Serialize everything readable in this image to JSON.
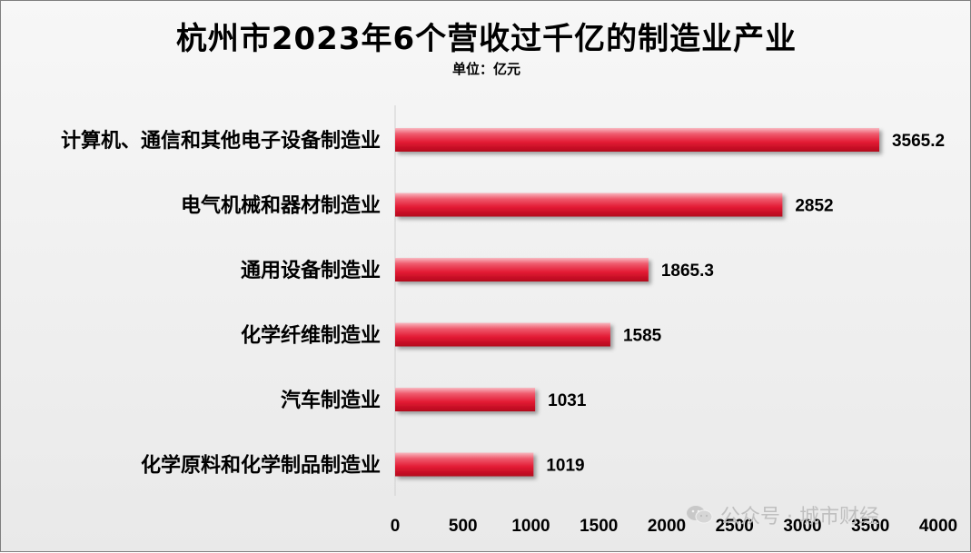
{
  "chart_data": {
    "type": "bar",
    "orientation": "horizontal",
    "title": "杭州市2023年6个营收过千亿的制造业产业",
    "subtitle": "单位：亿元",
    "categories": [
      "计算机、通信和其他电子设备制造业",
      "电气机械和器材制造业",
      "通用设备制造业",
      "化学纤维制造业",
      "汽车制造业",
      "化学原料和化学制品制造业"
    ],
    "values": [
      3565.2,
      2852,
      1865.3,
      1585,
      1031,
      1019
    ],
    "data_labels": [
      "3565.2",
      "2852",
      "1865.3",
      "1585",
      "1031",
      "1019"
    ],
    "xlim": [
      0,
      4000
    ],
    "x_ticks": [
      "0",
      "500",
      "1000",
      "1500",
      "2000",
      "2500",
      "3000",
      "3500",
      "4000"
    ],
    "grid": false,
    "bar_color": "#e8283e"
  },
  "watermark": {
    "text": "公众号 · 城市财经",
    "icon": "wechat-icon"
  }
}
